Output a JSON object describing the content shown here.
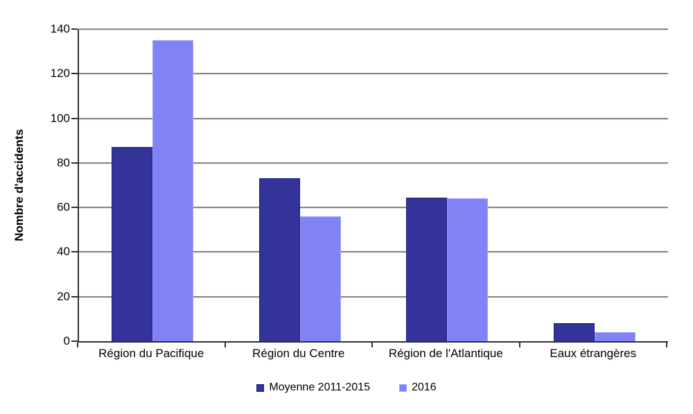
{
  "chart_data": {
    "type": "bar",
    "title": "",
    "ylabel": "Nombre d'accidents",
    "xlabel": "",
    "categories": [
      "Région du Pacifique",
      "Région du Centre",
      "Région de l'Atlantique",
      "Eaux étrangères"
    ],
    "series": [
      {
        "name": "Moyenne 2011-2015",
        "color": "#333399",
        "border_color": "#1a1a85",
        "values": [
          87,
          73,
          64.4,
          8
        ]
      },
      {
        "name": "2016",
        "color": "#8282f7",
        "border_color": "#a2a2fd",
        "values": [
          135,
          56,
          64,
          4
        ]
      }
    ],
    "ylim": [
      0,
      140
    ],
    "ytick_step": 20,
    "ytick_labels": [
      "0",
      "20",
      "40",
      "60",
      "80",
      "100",
      "120",
      "140"
    ],
    "grid": true,
    "legend_position": "bottom",
    "gridline_color": "#878787",
    "axis_color": "#2e2e2e",
    "background_color": "#ffffff"
  }
}
